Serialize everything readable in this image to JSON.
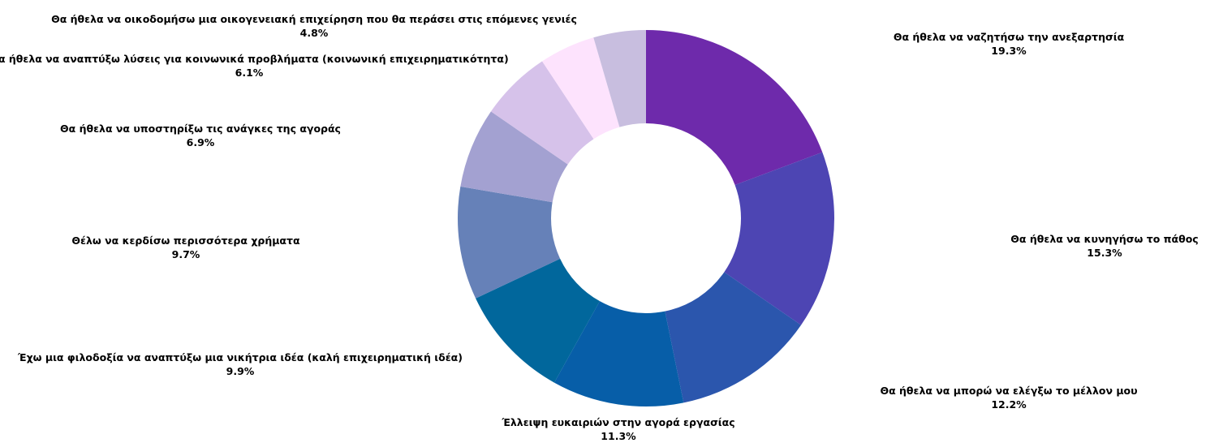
{
  "chart_data": {
    "type": "donut",
    "slices": [
      {
        "label": "Θα ήθελα να ναζητήσω την ανεξαρτησία",
        "value": 19.3,
        "value_label": "19.3%",
        "color": "#6e2aab"
      },
      {
        "label": "Θα ήθελα να κυνηγήσω το πάθος",
        "value": 15.3,
        "value_label": "15.3%",
        "color": "#4d45b3"
      },
      {
        "label": "Θα ήθελα να μπορώ να ελέγξω το μέλλον μου",
        "value": 12.2,
        "value_label": "12.2%",
        "color": "#2b56ad"
      },
      {
        "label": "Έλλειψη ευκαιριών στην αγορά εργασίας",
        "value": 11.3,
        "value_label": "11.3%",
        "color": "#075ea8"
      },
      {
        "label": "Έχω μια φιλοδοξία να αναπτύξω μια νικήτρια ιδέα (καλή επιχειρηματική ιδέα)",
        "value": 9.9,
        "value_label": "9.9%",
        "color": "#01679c"
      },
      {
        "label": "Θέλω να κερδίσω περισσότερα χρήματα",
        "value": 9.7,
        "value_label": "9.7%",
        "color": "#6681b8"
      },
      {
        "label": "Θα ήθελα να υποστηρίξω τις ανάγκες της αγοράς",
        "value": 6.9,
        "value_label": "6.9%",
        "color": "#a3a1d1"
      },
      {
        "label": "Θα ήθελα να αναπτύξω λύσεις για κοινωνικά προβλήματα (κοινωνική επιχειρηματικότητα)",
        "value": 6.1,
        "value_label": "6.1%",
        "color": "#d6c2ea"
      },
      {
        "label": "Θα ήθελα να οικοδομήσω μια οικογενειακή επιχείρηση που θα περάσει στις επόμενες γενιές",
        "value": 4.8,
        "value_label": "4.8%",
        "color": "#fde3fd"
      },
      {
        "label": "",
        "value": 4.5,
        "value_label": "",
        "color": "#c8bedf"
      }
    ]
  }
}
